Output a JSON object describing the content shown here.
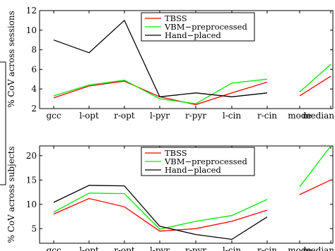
{
  "chart_data": [
    {
      "type": "line",
      "categories": [
        "gcc",
        "l-opt",
        "r-opt",
        "l-pyr",
        "r-pyr",
        "l-cin",
        "r-cin",
        "mode",
        "median"
      ],
      "ylabel": "% CoV across sessions",
      "ylim": [
        2,
        12
      ],
      "yticks": [
        2,
        4,
        6,
        8,
        10,
        12
      ],
      "series": [
        {
          "name": "TBSS",
          "color": "#ff0000",
          "values": [
            3.1,
            4.3,
            4.8,
            3.2,
            2.4,
            3.6,
            4.7,
            3.3,
            5.3
          ]
        },
        {
          "name": "VBM−preprocessed",
          "color": "#00ee00",
          "values": [
            3.3,
            4.4,
            4.9,
            3.0,
            2.5,
            4.6,
            5.0,
            3.7,
            6.5
          ]
        },
        {
          "name": "Hand−placed",
          "color": "#000000",
          "values": [
            9.0,
            7.7,
            11.0,
            3.2,
            3.6,
            3.2,
            3.6,
            null,
            null
          ]
        }
      ],
      "legend_position": "top-center",
      "grid": false
    },
    {
      "type": "line",
      "categories": [
        "gcc",
        "l-opt",
        "r-opt",
        "l-pyr",
        "r-pyr",
        "l-cin",
        "r-cin",
        "mode",
        "median"
      ],
      "ylabel": "% CoV across subjects",
      "ylim": [
        2,
        22
      ],
      "yticks": [
        5,
        10,
        15,
        20
      ],
      "series": [
        {
          "name": "TBSS",
          "color": "#ff0000",
          "values": [
            8.0,
            11.2,
            9.5,
            4.5,
            5.0,
            6.5,
            8.8,
            12.0,
            15.0
          ]
        },
        {
          "name": "VBM−preprocessed",
          "color": "#00ee00",
          "values": [
            8.4,
            12.3,
            12.2,
            4.9,
            6.5,
            7.7,
            11.0,
            13.6,
            22.0
          ]
        },
        {
          "name": "Hand−placed",
          "color": "#000000",
          "values": [
            10.4,
            13.9,
            13.8,
            5.5,
            3.8,
            2.8,
            7.4,
            null,
            null
          ]
        }
      ],
      "legend_position": "top-center",
      "grid": false
    }
  ]
}
